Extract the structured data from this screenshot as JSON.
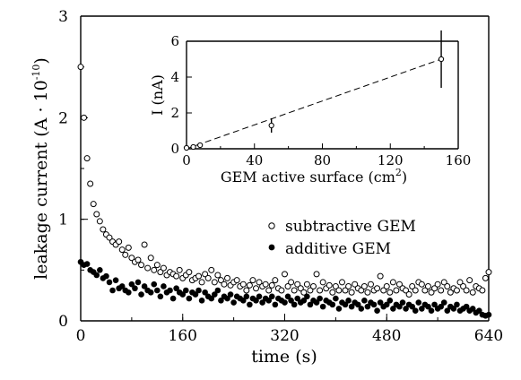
{
  "chart_data": [
    {
      "type": "scatter",
      "xlabel": "time (s)",
      "ylabel_prefix": "leakage current (A · 10",
      "ylabel_exp": "-10",
      "ylabel_suffix": ")",
      "xlim": [
        0,
        640
      ],
      "ylim": [
        0,
        3
      ],
      "x_ticks": [
        "0",
        "160",
        "320",
        "480",
        "640"
      ],
      "y_ticks": [
        "0",
        "1",
        "2",
        "3"
      ],
      "legend_position": "lower-right-inside",
      "series": [
        {
          "name": "subtractive GEM",
          "marker": "open-circle",
          "x": [
            0,
            5,
            10,
            15,
            20,
            25,
            30,
            35,
            40,
            45,
            50,
            55,
            60,
            65,
            70,
            75,
            80,
            85,
            90,
            95,
            100,
            105,
            110,
            115,
            120,
            125,
            130,
            135,
            140,
            145,
            150,
            155,
            160,
            165,
            170,
            175,
            180,
            185,
            190,
            195,
            200,
            205,
            210,
            215,
            220,
            225,
            230,
            235,
            240,
            245,
            250,
            255,
            260,
            265,
            270,
            275,
            280,
            285,
            290,
            295,
            300,
            305,
            310,
            315,
            320,
            325,
            330,
            335,
            340,
            345,
            350,
            355,
            360,
            365,
            370,
            375,
            380,
            385,
            390,
            395,
            400,
            405,
            410,
            415,
            420,
            425,
            430,
            435,
            440,
            445,
            450,
            455,
            460,
            465,
            470,
            475,
            480,
            485,
            490,
            495,
            500,
            505,
            510,
            515,
            520,
            525,
            530,
            535,
            540,
            545,
            550,
            555,
            560,
            565,
            570,
            575,
            580,
            585,
            590,
            595,
            600,
            605,
            610,
            615,
            620,
            625,
            630,
            635,
            640
          ],
          "y": [
            2.5,
            2.0,
            1.6,
            1.35,
            1.15,
            1.05,
            0.98,
            0.9,
            0.85,
            0.82,
            0.78,
            0.75,
            0.78,
            0.7,
            0.65,
            0.72,
            0.62,
            0.58,
            0.6,
            0.55,
            0.75,
            0.52,
            0.62,
            0.5,
            0.55,
            0.48,
            0.52,
            0.45,
            0.48,
            0.46,
            0.44,
            0.5,
            0.42,
            0.45,
            0.48,
            0.4,
            0.42,
            0.44,
            0.38,
            0.46,
            0.42,
            0.5,
            0.38,
            0.45,
            0.4,
            0.36,
            0.42,
            0.35,
            0.38,
            0.4,
            0.34,
            0.36,
            0.3,
            0.35,
            0.4,
            0.32,
            0.38,
            0.34,
            0.36,
            0.3,
            0.35,
            0.4,
            0.32,
            0.3,
            0.46,
            0.34,
            0.38,
            0.3,
            0.36,
            0.32,
            0.28,
            0.36,
            0.3,
            0.34,
            0.46,
            0.3,
            0.38,
            0.32,
            0.35,
            0.28,
            0.34,
            0.3,
            0.38,
            0.3,
            0.34,
            0.28,
            0.36,
            0.32,
            0.3,
            0.34,
            0.28,
            0.36,
            0.3,
            0.32,
            0.44,
            0.3,
            0.34,
            0.28,
            0.38,
            0.3,
            0.36,
            0.32,
            0.3,
            0.26,
            0.34,
            0.3,
            0.38,
            0.36,
            0.3,
            0.34,
            0.28,
            0.32,
            0.36,
            0.3,
            0.38,
            0.34,
            0.28,
            0.32,
            0.3,
            0.38,
            0.34,
            0.3,
            0.4,
            0.28,
            0.34,
            0.32,
            0.3,
            0.42,
            0.48
          ]
        },
        {
          "name": "additive GEM",
          "marker": "filled-circle",
          "x": [
            0,
            5,
            10,
            15,
            20,
            25,
            30,
            35,
            40,
            45,
            50,
            55,
            60,
            65,
            70,
            75,
            80,
            85,
            90,
            95,
            100,
            105,
            110,
            115,
            120,
            125,
            130,
            135,
            140,
            145,
            150,
            155,
            160,
            165,
            170,
            175,
            180,
            185,
            190,
            195,
            200,
            205,
            210,
            215,
            220,
            225,
            230,
            235,
            240,
            245,
            250,
            255,
            260,
            265,
            270,
            275,
            280,
            285,
            290,
            295,
            300,
            305,
            310,
            315,
            320,
            325,
            330,
            335,
            340,
            345,
            350,
            355,
            360,
            365,
            370,
            375,
            380,
            385,
            390,
            395,
            400,
            405,
            410,
            415,
            420,
            425,
            430,
            435,
            440,
            445,
            450,
            455,
            460,
            465,
            470,
            475,
            480,
            485,
            490,
            495,
            500,
            505,
            510,
            515,
            520,
            525,
            530,
            535,
            540,
            545,
            550,
            555,
            560,
            565,
            570,
            575,
            580,
            585,
            590,
            595,
            600,
            605,
            610,
            615,
            620,
            625,
            630,
            635,
            640
          ],
          "y": [
            0.58,
            0.55,
            0.56,
            0.5,
            0.48,
            0.45,
            0.5,
            0.42,
            0.44,
            0.38,
            0.3,
            0.4,
            0.32,
            0.34,
            0.3,
            0.28,
            0.36,
            0.32,
            0.38,
            0.26,
            0.34,
            0.3,
            0.28,
            0.36,
            0.3,
            0.24,
            0.34,
            0.28,
            0.3,
            0.22,
            0.32,
            0.28,
            0.26,
            0.3,
            0.22,
            0.28,
            0.26,
            0.3,
            0.2,
            0.28,
            0.24,
            0.22,
            0.26,
            0.3,
            0.2,
            0.24,
            0.22,
            0.26,
            0.18,
            0.24,
            0.22,
            0.2,
            0.24,
            0.16,
            0.22,
            0.2,
            0.24,
            0.18,
            0.22,
            0.2,
            0.24,
            0.16,
            0.22,
            0.2,
            0.18,
            0.24,
            0.2,
            0.16,
            0.22,
            0.18,
            0.2,
            0.24,
            0.16,
            0.2,
            0.18,
            0.22,
            0.14,
            0.2,
            0.18,
            0.16,
            0.22,
            0.12,
            0.18,
            0.16,
            0.2,
            0.14,
            0.18,
            0.16,
            0.12,
            0.2,
            0.14,
            0.18,
            0.16,
            0.1,
            0.18,
            0.14,
            0.16,
            0.2,
            0.12,
            0.16,
            0.14,
            0.18,
            0.12,
            0.16,
            0.14,
            0.1,
            0.18,
            0.12,
            0.16,
            0.14,
            0.1,
            0.16,
            0.12,
            0.14,
            0.18,
            0.1,
            0.14,
            0.12,
            0.16,
            0.1,
            0.12,
            0.14,
            0.1,
            0.12,
            0.08,
            0.1,
            0.06,
            0.05,
            0.06
          ]
        }
      ]
    },
    {
      "type": "scatter",
      "inset": true,
      "xlabel_prefix": "GEM active surface (cm",
      "xlabel_exp": "2",
      "xlabel_suffix": ")",
      "ylabel": "I (nA)",
      "xlim": [
        0,
        160
      ],
      "ylim": [
        0,
        6
      ],
      "x_ticks": [
        "0",
        "40",
        "80",
        "120",
        "160"
      ],
      "y_ticks": [
        "0",
        "2",
        "4",
        "6"
      ],
      "points": [
        {
          "x": 0,
          "y": 0.05,
          "err": 0
        },
        {
          "x": 4,
          "y": 0.1,
          "err": 0
        },
        {
          "x": 8,
          "y": 0.2,
          "err": 0
        },
        {
          "x": 50,
          "y": 1.3,
          "err": 0.4
        },
        {
          "x": 150,
          "y": 5.0,
          "err": 1.6
        }
      ],
      "fit_line": {
        "style": "dashed",
        "x": [
          0,
          150
        ],
        "y": [
          0.0,
          5.0
        ]
      }
    }
  ]
}
